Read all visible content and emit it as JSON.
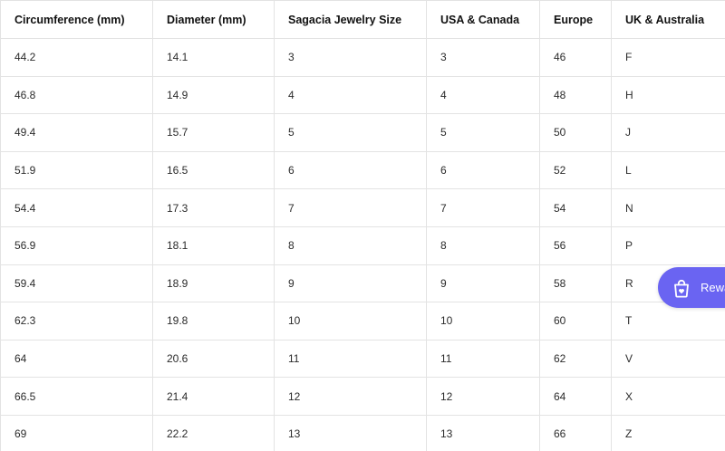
{
  "table": {
    "headers": [
      "Circumference (mm)",
      "Diameter (mm)",
      "Sagacia Jewelry Size",
      "USA & Canada",
      "Europe",
      "UK & Australia"
    ],
    "rows": [
      [
        "44.2",
        "14.1",
        "3",
        "3",
        "46",
        "F"
      ],
      [
        "46.8",
        "14.9",
        "4",
        "4",
        "48",
        "H"
      ],
      [
        "49.4",
        "15.7",
        "5",
        "5",
        "50",
        "J"
      ],
      [
        "51.9",
        "16.5",
        "6",
        "6",
        "52",
        "L"
      ],
      [
        "54.4",
        "17.3",
        "7",
        "7",
        "54",
        "N"
      ],
      [
        "56.9",
        "18.1",
        "8",
        "8",
        "56",
        "P"
      ],
      [
        "59.4",
        "18.9",
        "9",
        "9",
        "58",
        "R"
      ],
      [
        "62.3",
        "19.8",
        "10",
        "10",
        "60",
        "T"
      ],
      [
        "64",
        "20.6",
        "11",
        "11",
        "62",
        "V"
      ],
      [
        "66.5",
        "21.4",
        "12",
        "12",
        "64",
        "X"
      ],
      [
        "69",
        "22.2",
        "13",
        "13",
        "66",
        "Z"
      ]
    ]
  },
  "rewards": {
    "label": "Rewa",
    "icon": "shopping-bag-heart-icon",
    "color": "#6a64f2"
  }
}
